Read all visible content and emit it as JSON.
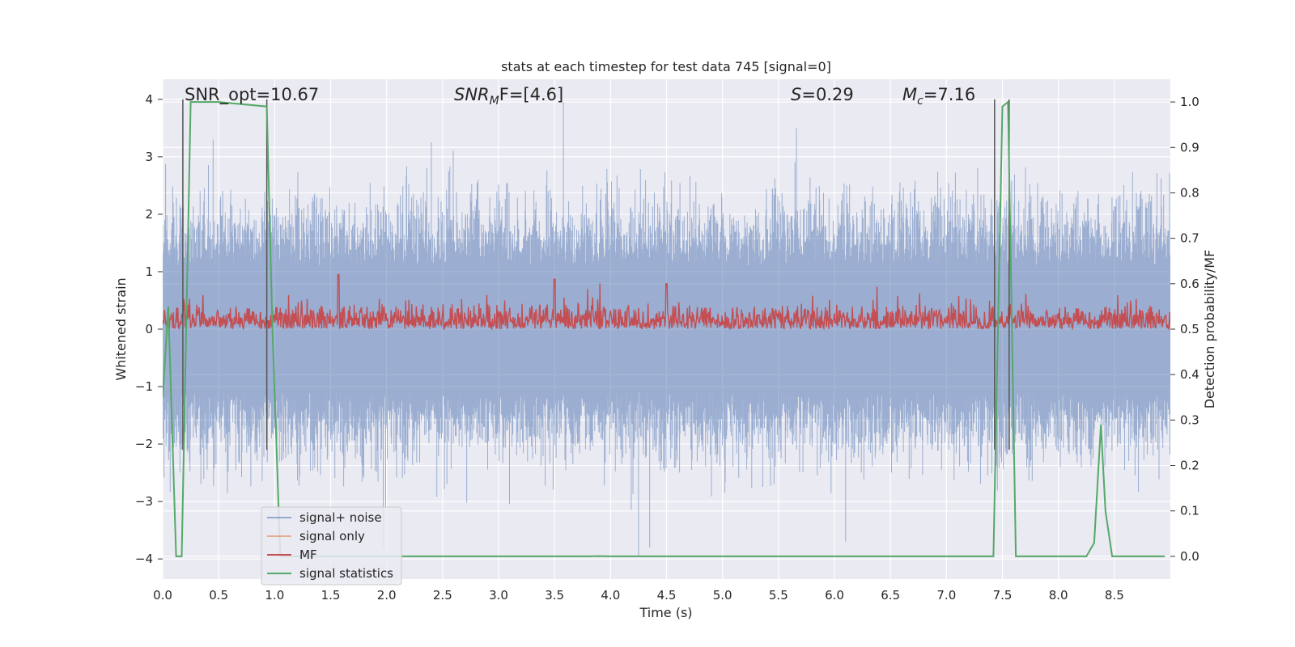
{
  "chart_data": {
    "type": "line",
    "title": "stats at each timestep for test data 745 [signal=0]",
    "xlabel": "Time (s)",
    "ylabel_left": "Whitened strain",
    "ylabel_right": "Detection probability/MF",
    "xlim": [
      0.0,
      9.0
    ],
    "ylim_left": [
      -4.35,
      4.35
    ],
    "ylim_right": [
      -0.05,
      1.05
    ],
    "x_ticks": [
      "0.0",
      "0.5",
      "1.0",
      "1.5",
      "2.0",
      "2.5",
      "3.0",
      "3.5",
      "4.0",
      "4.5",
      "5.0",
      "5.5",
      "6.0",
      "6.5",
      "7.0",
      "7.5",
      "8.0",
      "8.5"
    ],
    "y_ticks_left": [
      "−4",
      "−3",
      "−2",
      "−1",
      "0",
      "1",
      "2",
      "3",
      "4"
    ],
    "y_ticks_right": [
      "0.0",
      "0.1",
      "0.2",
      "0.3",
      "0.4",
      "0.5",
      "0.6",
      "0.7",
      "0.8",
      "0.9",
      "1.0"
    ],
    "grid": true,
    "legend_position": "lower-left",
    "annotations": {
      "snr_opt": "SNR_opt=10.67",
      "snr_mf_main": "SNR",
      "snr_mf_sub": "M",
      "snr_mf_rest": "F=[4.6]",
      "s_main": "S",
      "s_rest": "=0.29",
      "mc_main": "M",
      "mc_sub": "c",
      "mc_rest": "=7.16"
    },
    "colors": {
      "background": "#eaeaf2",
      "grid": "#ffffff",
      "noise": "#4c72b0",
      "signal_only": "#dd8452",
      "mf": "#c44e52",
      "stat": "#55a868",
      "vline": "#555555"
    },
    "series": [
      {
        "name": "signal+ noise",
        "axis": "left",
        "description_values": "band noise, roughly symmetric, amplitude ~±2 with spikes to ±3.9",
        "envelope_lower": -2.0,
        "envelope_upper": 2.0,
        "spike_peaks": [
          {
            "x": 0.18,
            "y": 3.8
          },
          {
            "x": 0.45,
            "y": 3.3
          },
          {
            "x": 2.4,
            "y": 3.25
          },
          {
            "x": 3.58,
            "y": 3.95
          },
          {
            "x": 5.66,
            "y": 3.5
          },
          {
            "x": 4.25,
            "y": -3.95
          },
          {
            "x": 4.35,
            "y": -3.8
          },
          {
            "x": 6.1,
            "y": -3.7
          },
          {
            "x": 1.97,
            "y": -3.8
          }
        ]
      },
      {
        "name": "signal only",
        "axis": "left",
        "values": []
      },
      {
        "name": "MF",
        "axis": "right",
        "baseline": 0.5,
        "typical_max": 0.58,
        "peaks": [
          {
            "x": 1.57,
            "y": 0.62
          },
          {
            "x": 3.5,
            "y": 0.61
          },
          {
            "x": 4.5,
            "y": 0.6
          }
        ]
      },
      {
        "name": "signal statistics",
        "axis": "right",
        "x": [
          0.0,
          0.05,
          0.12,
          0.17,
          0.25,
          0.5,
          0.93,
          0.98,
          1.05,
          1.1,
          1.5,
          1.6,
          2.0,
          3.0,
          3.8,
          3.9,
          4.0,
          5.0,
          6.0,
          7.0,
          7.42,
          7.5,
          7.55,
          7.62,
          8.0,
          8.25,
          8.32,
          8.38,
          8.42,
          8.48,
          8.6,
          8.95
        ],
        "values": [
          0.35,
          0.55,
          0.0,
          0.0,
          1.0,
          1.0,
          0.99,
          0.5,
          0.0,
          0.0,
          0.0,
          0.0,
          0.0,
          0.0,
          0.0,
          0.0005,
          0.0,
          0.0,
          0.0,
          0.0,
          0.0,
          0.99,
          1.0,
          0.0,
          0.0,
          0.0,
          0.03,
          0.29,
          0.1,
          0.0,
          0.0,
          0.0
        ]
      }
    ],
    "vertical_lines_x": [
      0.18,
      0.93,
      7.43,
      7.56
    ]
  }
}
